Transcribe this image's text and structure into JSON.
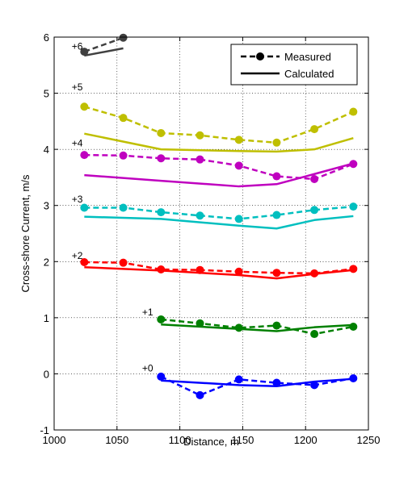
{
  "chart_data": {
    "type": "line",
    "title": "",
    "xlabel": "Distance, m",
    "ylabel": "Cross-shore Current, m/s",
    "xlim": [
      1000,
      1250
    ],
    "ylim": [
      -1,
      6
    ],
    "xticks": [
      1000,
      1050,
      1100,
      1150,
      1200,
      1250
    ],
    "yticks": [
      -1,
      0,
      1,
      2,
      3,
      4,
      5,
      6
    ],
    "xtick_labels": [
      "1000",
      "1050",
      "1100",
      "1150",
      "1200",
      "1250"
    ],
    "ytick_labels": [
      "-1",
      "0",
      "1",
      "2",
      "3",
      "4",
      "5",
      "6"
    ],
    "grid": true,
    "legend": {
      "placement": "top-right",
      "entries": [
        {
          "label": "Measured",
          "style": "dashed-marker"
        },
        {
          "label": "Calculated",
          "style": "solid"
        }
      ]
    },
    "groups": [
      {
        "offset_label": "+0",
        "label_at": [
          1070,
          0.04
        ],
        "color": "#0000ff",
        "measured": {
          "x": [
            1085,
            1116,
            1147,
            1177,
            1207,
            1238
          ],
          "y": [
            -0.05,
            -0.38,
            -0.1,
            -0.16,
            -0.2,
            -0.08
          ]
        },
        "calculated": {
          "x": [
            1085,
            1147,
            1177,
            1207,
            1238
          ],
          "y": [
            -0.12,
            -0.2,
            -0.22,
            -0.14,
            -0.09
          ]
        }
      },
      {
        "offset_label": "+1",
        "label_at": [
          1070,
          1.04
        ],
        "color": "#008000",
        "measured": {
          "x": [
            1085,
            1116,
            1147,
            1177,
            1207,
            1238
          ],
          "y": [
            0.97,
            0.9,
            0.82,
            0.86,
            0.71,
            0.84
          ]
        },
        "calculated": {
          "x": [
            1085,
            1147,
            1177,
            1207,
            1238
          ],
          "y": [
            0.88,
            0.8,
            0.76,
            0.83,
            0.87
          ]
        }
      },
      {
        "offset_label": "+2",
        "label_at": [
          1014,
          2.05
        ],
        "color": "#ff0000",
        "measured": {
          "x": [
            1024,
            1055,
            1085,
            1116,
            1147,
            1177,
            1207,
            1238
          ],
          "y": [
            1.99,
            1.98,
            1.86,
            1.85,
            1.82,
            1.8,
            1.79,
            1.87
          ]
        },
        "calculated": {
          "x": [
            1024,
            1085,
            1147,
            1177,
            1207,
            1238
          ],
          "y": [
            1.9,
            1.84,
            1.76,
            1.7,
            1.78,
            1.85
          ]
        }
      },
      {
        "offset_label": "+3",
        "label_at": [
          1014,
          3.05
        ],
        "color": "#00bfbf",
        "measured": {
          "x": [
            1024,
            1055,
            1085,
            1116,
            1147,
            1177,
            1207,
            1238
          ],
          "y": [
            2.96,
            2.96,
            2.88,
            2.82,
            2.76,
            2.83,
            2.92,
            2.98
          ]
        },
        "calculated": {
          "x": [
            1024,
            1085,
            1147,
            1177,
            1207,
            1238
          ],
          "y": [
            2.8,
            2.76,
            2.64,
            2.59,
            2.74,
            2.81
          ]
        }
      },
      {
        "offset_label": "+4",
        "label_at": [
          1014,
          4.05
        ],
        "color": "#bf00bf",
        "measured": {
          "x": [
            1024,
            1055,
            1085,
            1116,
            1147,
            1177,
            1207,
            1238
          ],
          "y": [
            3.9,
            3.89,
            3.84,
            3.82,
            3.71,
            3.52,
            3.47,
            3.74
          ]
        },
        "calculated": {
          "x": [
            1024,
            1085,
            1147,
            1177,
            1207,
            1238
          ],
          "y": [
            3.54,
            3.44,
            3.34,
            3.38,
            3.56,
            3.75
          ]
        }
      },
      {
        "offset_label": "+5",
        "label_at": [
          1014,
          5.05
        ],
        "color": "#bfbf00",
        "measured": {
          "x": [
            1024,
            1055,
            1085,
            1116,
            1147,
            1177,
            1207,
            1238
          ],
          "y": [
            4.76,
            4.56,
            4.29,
            4.25,
            4.17,
            4.12,
            4.36,
            4.67
          ]
        },
        "calculated": {
          "x": [
            1024,
            1085,
            1147,
            1177,
            1207,
            1238
          ],
          "y": [
            4.28,
            4.0,
            3.97,
            3.96,
            4.0,
            4.2
          ]
        }
      },
      {
        "offset_label": "+6",
        "label_at": [
          1014,
          5.78
        ],
        "color": "#404040",
        "measured": {
          "x": [
            1024,
            1055
          ],
          "y": [
            5.74,
            5.99
          ]
        },
        "calculated": {
          "x": [
            1024,
            1055
          ],
          "y": [
            5.67,
            5.8
          ]
        }
      }
    ]
  }
}
